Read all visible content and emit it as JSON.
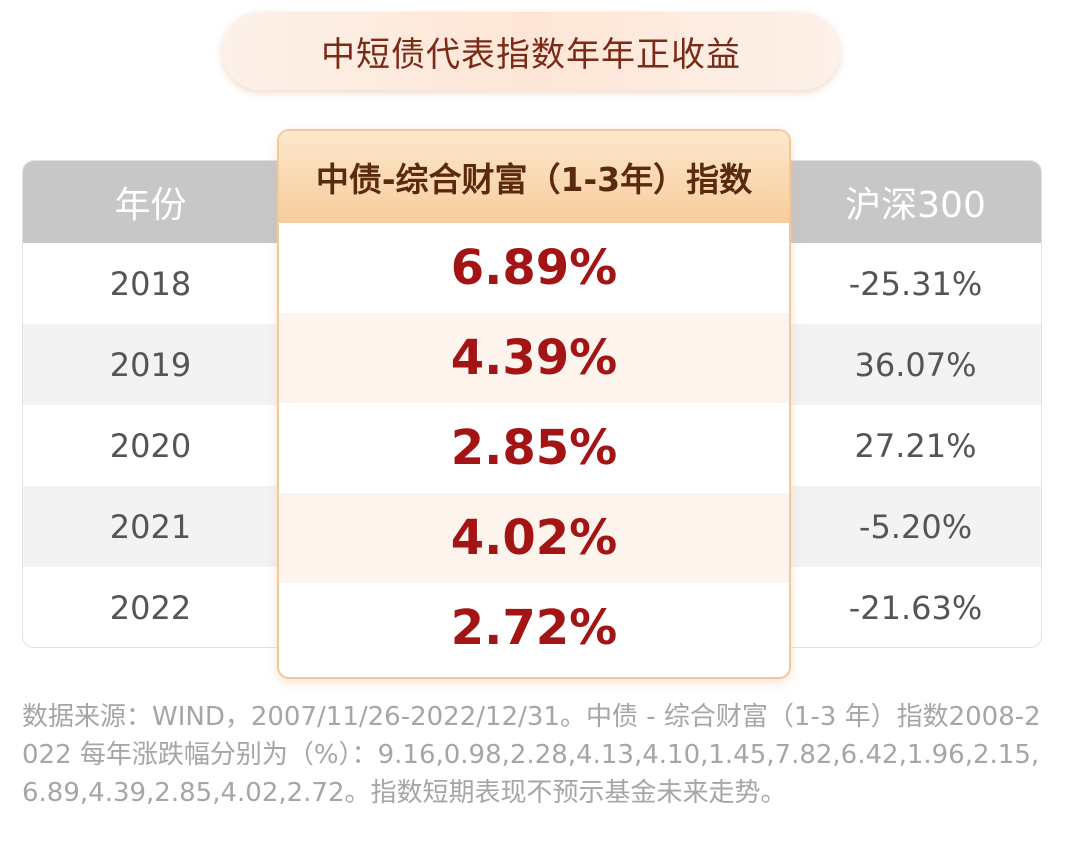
{
  "title": "中短债代表指数年年正收益",
  "table": {
    "headers": {
      "year": "年份",
      "index": "中债-综合财富（1-3年）指数",
      "hs300": "沪深300"
    },
    "rows": [
      {
        "year": "2018",
        "index": "6.89%",
        "hs300": "-25.31%"
      },
      {
        "year": "2019",
        "index": "4.39%",
        "hs300": "36.07%"
      },
      {
        "year": "2020",
        "index": "2.85%",
        "hs300": "27.21%"
      },
      {
        "year": "2021",
        "index": "4.02%",
        "hs300": "-5.20%"
      },
      {
        "year": "2022",
        "index": "2.72%",
        "hs300": "-21.63%"
      }
    ]
  },
  "footnote": "数据来源：WIND，2007/11/26-2022/12/31。中债 - 综合财富（1-3 年）指数2008-2022 每年涨跌幅分别为（%）：9.16,0.98,2.28,4.13,4.10,1.45,7.82,6.42,1.96,2.15,6.89,4.39,2.85,4.02,2.72。指数短期表现不预示基金未来走势。",
  "colors": {
    "title_text": "#7a2a16",
    "header_gray": "#c7c7c7",
    "highlight_value": "#a31515",
    "highlight_header": "#f8cd9c"
  }
}
